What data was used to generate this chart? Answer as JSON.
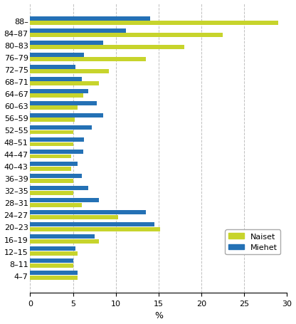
{
  "categories": [
    "88–",
    "84–87",
    "80–83",
    "76–79",
    "72–75",
    "68–71",
    "64–67",
    "60–63",
    "56–59",
    "52–55",
    "48–51",
    "44–47",
    "40–43",
    "36–39",
    "32–35",
    "28–31",
    "24–27",
    "20–23",
    "16–19",
    "12–15",
    "8–11",
    "4–7"
  ],
  "naiset": [
    29,
    22.5,
    18,
    13.5,
    9.2,
    8.0,
    6.2,
    5.5,
    5.2,
    5.0,
    5.0,
    4.8,
    4.8,
    5.0,
    5.0,
    6.0,
    10.3,
    15.2,
    8.0,
    5.5,
    5.0,
    5.5
  ],
  "miehet": [
    14.0,
    11.2,
    8.5,
    6.3,
    5.3,
    6.0,
    6.8,
    7.8,
    8.5,
    7.2,
    6.3,
    6.2,
    5.5,
    6.0,
    6.8,
    8.0,
    13.5,
    14.5,
    7.5,
    5.3,
    5.0,
    5.5
  ],
  "color_naiset": "#c7d42c",
  "color_miehet": "#2471b5",
  "xlabel": "%",
  "xlim": [
    0,
    30
  ],
  "xticks": [
    0,
    5,
    10,
    15,
    20,
    25,
    30
  ],
  "legend_naiset": "Naiset",
  "legend_miehet": "Miehet",
  "background_color": "#ffffff",
  "grid_color": "#c0c0c0"
}
